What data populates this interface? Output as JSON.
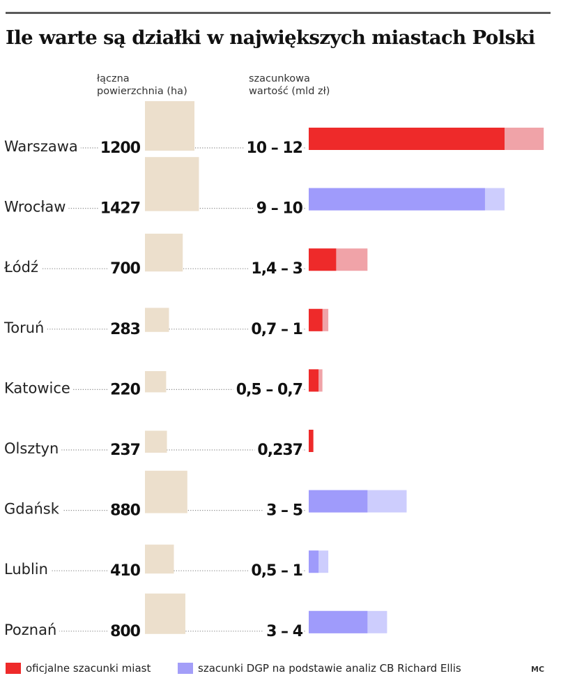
{
  "title": "Ile warte są działki w największych miastach Polski",
  "headers": {
    "area": [
      "łączna",
      "powierzchnia (ha)"
    ],
    "value": [
      "szacunkowa",
      "wartość (mld zł)"
    ]
  },
  "legend": {
    "official": "oficjalne szacunki miast",
    "dgp": "szacunki DGP na podstawie analiz CB Richard Ellis"
  },
  "credit": "MC",
  "colors": {
    "area_bar": "#ecdfcc",
    "official_low": "#ee2a2a",
    "official_high": "#f0a3a8",
    "dgp_low": "#9f9bfb",
    "dgp_high": "#cdcdfd",
    "legend_official": "#ee2a2a",
    "legend_dgp": "#a39ef8"
  },
  "chart_data": {
    "type": "bar",
    "categories": [
      "Warszawa",
      "Wrocław",
      "Łódź",
      "Toruń",
      "Katowice",
      "Olsztyn",
      "Gdańsk",
      "Lublin",
      "Poznań"
    ],
    "area_ha": [
      1200,
      1427,
      700,
      283,
      220,
      237,
      880,
      410,
      800
    ],
    "area_labels": [
      "1200",
      "1427",
      "700",
      "283",
      "220",
      "237",
      "880",
      "410",
      "800"
    ],
    "value_labels": [
      "10 – 12",
      "9 – 10",
      "1,4 – 3",
      "0,7 – 1",
      "0,5 – 0,7",
      "0,237",
      "3 – 5",
      "0,5 – 1",
      "3 – 4"
    ],
    "value_low": [
      10,
      9,
      1.4,
      0.7,
      0.5,
      0.237,
      3,
      0.5,
      3
    ],
    "value_high": [
      12,
      10,
      3,
      1,
      0.7,
      0.237,
      5,
      1,
      4
    ],
    "source": [
      "official",
      "dgp",
      "official",
      "official",
      "official",
      "official",
      "dgp",
      "dgp",
      "dgp"
    ]
  }
}
